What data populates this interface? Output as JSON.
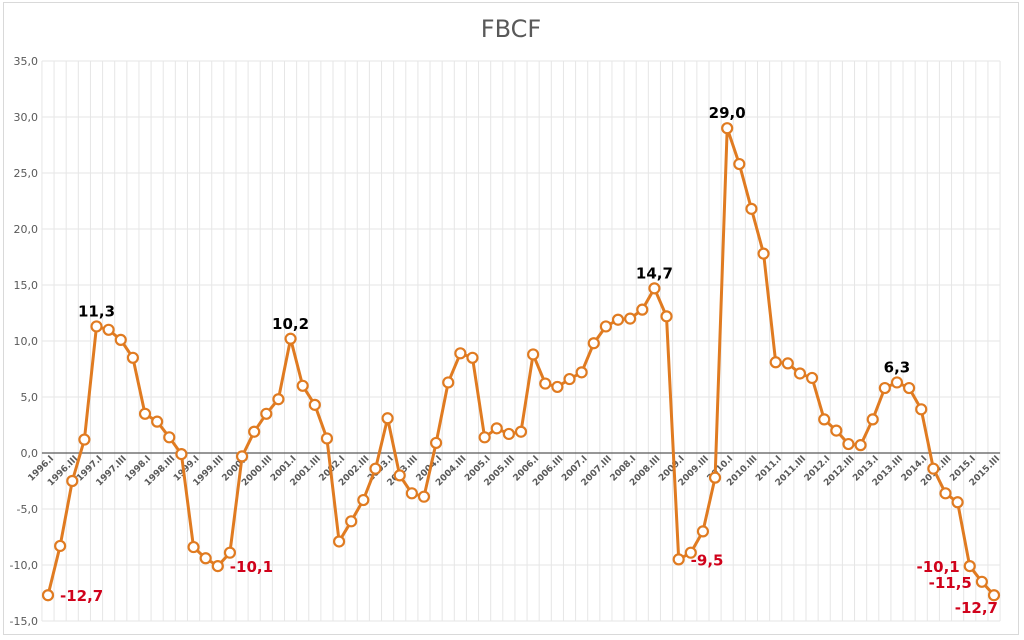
{
  "chart_data": {
    "type": "line",
    "title": "FBCF",
    "xlabel": "",
    "ylabel": "",
    "ylim": [
      -15,
      35
    ],
    "yticks": [
      "35,0",
      "30,0",
      "25,0",
      "20,0",
      "15,0",
      "10,0",
      "5,0",
      "0,0",
      "-5,0",
      "-10,0",
      "-15,0"
    ],
    "ytick_values": [
      35,
      30,
      25,
      20,
      15,
      10,
      5,
      0,
      -5,
      -10,
      -15
    ],
    "grid": true,
    "legend": "none",
    "colors": {
      "line": "#e07b21",
      "marker_fill": "#ffffff",
      "positive_label": "#000000",
      "negative_label": "#d0021b",
      "grid": "#e6e6e6",
      "zero_line": "#595959"
    },
    "categories": [
      "1996.I",
      "1996.II",
      "1996.III",
      "1996.IV",
      "1997.I",
      "1997.II",
      "1997.III",
      "1997.IV",
      "1998.I",
      "1998.II",
      "1998.III",
      "1998.IV",
      "1999.I",
      "1999.II",
      "1999.III",
      "1999.IV",
      "2000.I",
      "2000.II",
      "2000.III",
      "2000.IV",
      "2001.I",
      "2001.II",
      "2001.III",
      "2001.IV",
      "2002.I",
      "2002.II",
      "2002.III",
      "2002.IV",
      "2003.I",
      "2003.II",
      "2003.III",
      "2003.IV",
      "2004.I",
      "2004.II",
      "2004.III",
      "2004.IV",
      "2005.I",
      "2005.II",
      "2005.III",
      "2005.IV",
      "2006.I",
      "2006.II",
      "2006.III",
      "2006.IV",
      "2007.I",
      "2007.II",
      "2007.III",
      "2007.IV",
      "2008.I",
      "2008.II",
      "2008.III",
      "2008.IV",
      "2009.I",
      "2009.II",
      "2009.III",
      "2009.IV",
      "2010.I",
      "2010.II",
      "2010.III",
      "2010.IV",
      "2011.I",
      "2011.II",
      "2011.III",
      "2011.IV",
      "2012.I",
      "2012.II",
      "2012.III",
      "2012.IV",
      "2013.I",
      "2013.II",
      "2013.III",
      "2013.IV",
      "2014.I",
      "2014.II",
      "2014.III",
      "2014.IV",
      "2015.I",
      "2015.II",
      "2015.III"
    ],
    "x_tick_labels_shown": [
      "1996.I",
      "1996.III",
      "1997.I",
      "1997.III",
      "1998.I",
      "1998.III",
      "1999.I",
      "1999.III",
      "2000.I",
      "2000.III",
      "2001.I",
      "2001.III",
      "2002.I",
      "2002.III",
      "2003.I",
      "2003.III",
      "2004.I",
      "2004.III",
      "2005.I",
      "2005.III",
      "2006.I",
      "2006.III",
      "2007.I",
      "2007.III",
      "2008.I",
      "2008.III",
      "2009.I",
      "2009.III",
      "2010.I",
      "2010.III",
      "2011.I",
      "2011.III",
      "2012.I",
      "2012.III",
      "2013.I",
      "2013.III",
      "2014.I",
      "2014.III",
      "2015.I",
      "2015.III"
    ],
    "series": [
      {
        "name": "FBCF",
        "values": [
          -12.7,
          -8.3,
          -2.5,
          1.2,
          11.3,
          11.0,
          10.1,
          8.5,
          3.5,
          2.8,
          1.4,
          -0.1,
          -8.4,
          -9.4,
          -10.1,
          -8.9,
          -0.3,
          1.9,
          3.5,
          4.8,
          10.2,
          6.0,
          4.3,
          1.3,
          -7.9,
          -6.1,
          -4.2,
          -1.4,
          3.1,
          -2.0,
          -3.6,
          -3.9,
          0.9,
          6.3,
          8.9,
          8.5,
          1.4,
          2.2,
          1.7,
          1.9,
          8.8,
          6.2,
          5.9,
          6.6,
          7.2,
          9.8,
          11.3,
          11.9,
          12.0,
          12.8,
          14.7,
          12.2,
          -9.5,
          -8.9,
          -7.0,
          -2.2,
          29.0,
          25.8,
          21.8,
          17.8,
          8.1,
          8.0,
          7.1,
          6.7,
          3.0,
          2.0,
          0.8,
          0.7,
          3.0,
          5.8,
          6.3,
          5.8,
          3.9,
          -1.4,
          -3.6,
          -4.4,
          -10.1,
          -11.5,
          -12.7
        ]
      }
    ],
    "annotations": [
      {
        "index": 0,
        "text": "-12,7",
        "pos": "right"
      },
      {
        "index": 4,
        "text": "11,3",
        "pos": "above"
      },
      {
        "index": 14,
        "text": "-10,1",
        "pos": "right"
      },
      {
        "index": 20,
        "text": "10,2",
        "pos": "above"
      },
      {
        "index": 50,
        "text": "14,7",
        "pos": "above"
      },
      {
        "index": 52,
        "text": "-9,5",
        "pos": "right"
      },
      {
        "index": 56,
        "text": "29,0",
        "pos": "above"
      },
      {
        "index": 70,
        "text": "6,3",
        "pos": "above"
      },
      {
        "index": 76,
        "text": "-10,1",
        "pos": "left"
      },
      {
        "index": 77,
        "text": "-11,5",
        "pos": "left"
      },
      {
        "index": 78,
        "text": "-12,7",
        "pos": "below-left"
      }
    ]
  }
}
